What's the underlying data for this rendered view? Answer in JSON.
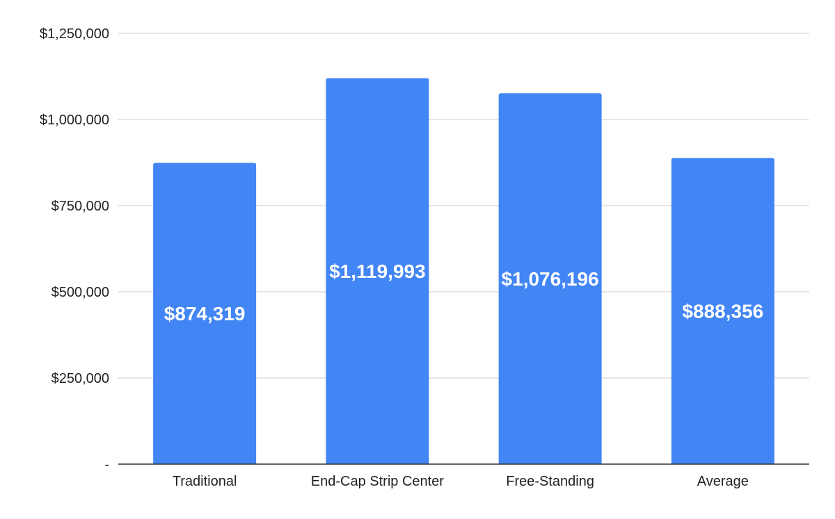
{
  "chart_data": {
    "type": "bar",
    "categories": [
      "Traditional",
      "End-Cap Strip Center",
      "Free-Standing",
      "Average"
    ],
    "values": [
      874319,
      1119993,
      1076196,
      888356
    ],
    "data_labels": [
      "$874,319",
      "$1,119,993",
      "$1,076,196",
      "$888,356"
    ],
    "ylim": [
      0,
      1250000
    ],
    "y_ticks": [
      0,
      250000,
      500000,
      750000,
      1000000,
      1250000
    ],
    "y_tick_labels": [
      "-",
      "$250,000",
      "$500,000",
      "$750,000",
      "$1,000,000",
      "$1,250,000"
    ],
    "grid": true,
    "legend": "none",
    "title": "",
    "xlabel": "",
    "ylabel": "",
    "colors": {
      "bar": "#4285F4",
      "grid": "#cccccc",
      "axis": "#333333"
    }
  }
}
